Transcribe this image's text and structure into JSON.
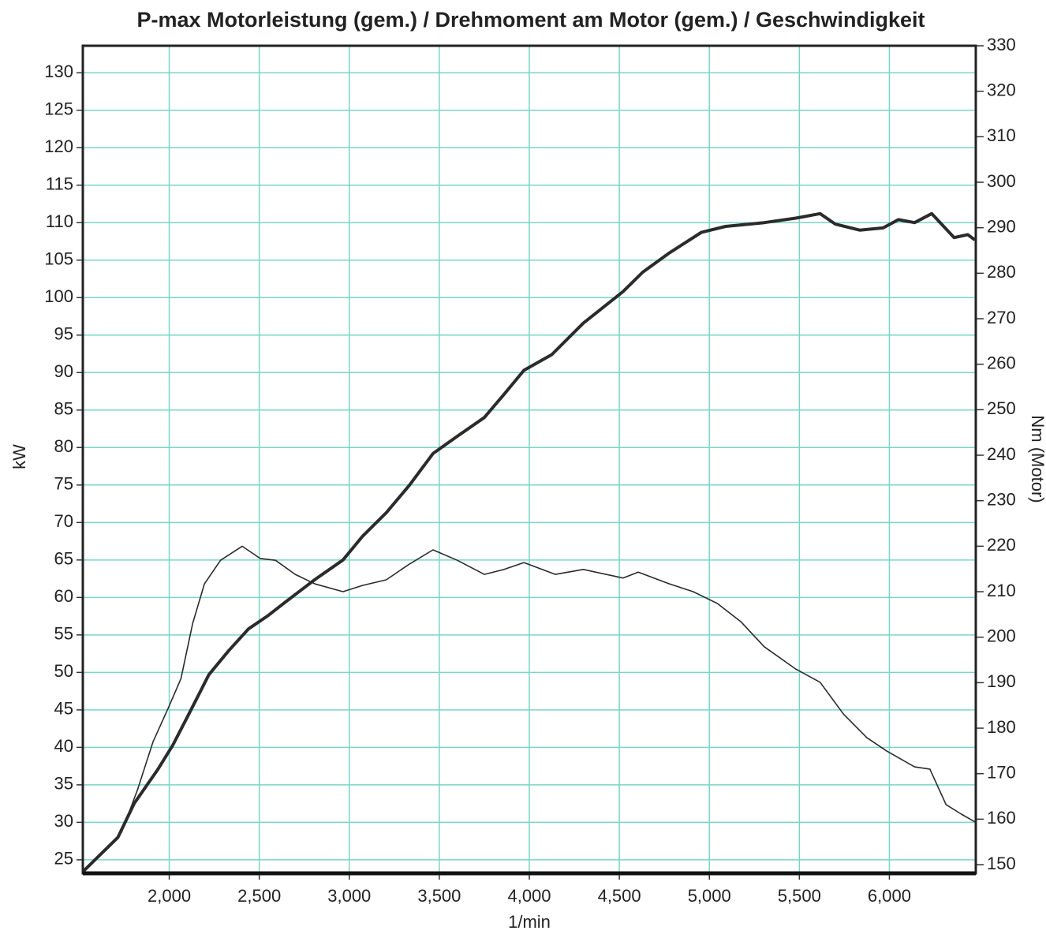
{
  "chart_data": {
    "type": "line",
    "title": "P-max Motorleistung (gem.) / Drehmoment am Motor (gem.) / Geschwindigkeit",
    "xlabel": "1/min",
    "ylabel": "kW",
    "y2label": "Nm (Motor)",
    "xlim": [
      1520,
      6480
    ],
    "ylim": [
      23.2,
      133.6
    ],
    "y2lim": [
      148.1,
      330
    ],
    "xticks": [
      {
        "value": 2000,
        "label": "2,000"
      },
      {
        "value": 2500,
        "label": "2,500"
      },
      {
        "value": 3000,
        "label": "3,000"
      },
      {
        "value": 3500,
        "label": "3,500"
      },
      {
        "value": 4000,
        "label": "4,000"
      },
      {
        "value": 4500,
        "label": "4,500"
      },
      {
        "value": 5000,
        "label": "5,000"
      },
      {
        "value": 5500,
        "label": "5,500"
      },
      {
        "value": 6000,
        "label": "6,000"
      }
    ],
    "yticks": [
      25,
      30,
      35,
      40,
      45,
      50,
      55,
      60,
      65,
      70,
      75,
      80,
      85,
      90,
      95,
      100,
      105,
      110,
      115,
      120,
      125,
      130
    ],
    "y2ticks": [
      150,
      160,
      170,
      180,
      190,
      200,
      210,
      220,
      230,
      240,
      250,
      260,
      270,
      280,
      290,
      300,
      310,
      320,
      330
    ],
    "grid": true,
    "series": [
      {
        "name": "Motorleistung",
        "color": "#2b2b2b",
        "width": 4,
        "x": [
          1520,
          1630,
          1715,
          1805,
          1935,
          2020,
          2110,
          2220,
          2330,
          2440,
          2550,
          2635,
          2810,
          2965,
          3075,
          3205,
          3335,
          3465,
          3600,
          3750,
          3860,
          3970,
          4125,
          4300,
          4520,
          4630,
          4780,
          4955,
          5090,
          5305,
          5480,
          5615,
          5700,
          5835,
          5965,
          6050,
          6140,
          6235,
          6360,
          6435,
          6475
        ],
        "values": [
          23.4,
          26,
          28,
          32.5,
          37,
          40.3,
          44.5,
          49.7,
          52.9,
          55.8,
          57.6,
          59.2,
          62.4,
          65,
          68.2,
          71.3,
          75,
          79.2,
          81.5,
          84,
          87.1,
          90.3,
          92.4,
          96.6,
          100.8,
          103.4,
          106,
          108.7,
          109.5,
          110,
          110.6,
          111.2,
          109.8,
          109,
          109.3,
          110.4,
          110,
          111.2,
          108,
          108.4,
          107.7
        ]
      },
      {
        "name": "Drehmoment",
        "color": "#2b2b2b",
        "width": 1.6,
        "axis": "y2",
        "x": [
          1520,
          1630,
          1735,
          1825,
          1910,
          2000,
          2065,
          2130,
          2195,
          2285,
          2405,
          2505,
          2590,
          2700,
          2810,
          2965,
          3075,
          3205,
          3335,
          3465,
          3600,
          3750,
          3860,
          3970,
          4145,
          4300,
          4520,
          4605,
          4780,
          4910,
          5045,
          5175,
          5305,
          5480,
          5615,
          5745,
          5875,
          5985,
          6140,
          6225,
          6315,
          6400,
          6475
        ],
        "values": [
          148.4,
          152.8,
          157.1,
          166.6,
          177,
          184.9,
          190.9,
          203,
          211.7,
          216.9,
          220,
          217.3,
          216.9,
          213.8,
          211.7,
          210,
          211.4,
          212.6,
          216.1,
          219.2,
          216.9,
          213.8,
          214.9,
          216.4,
          213.8,
          214.9,
          213,
          214.3,
          211.7,
          210,
          207.4,
          203.4,
          197.9,
          193,
          190.1,
          183.1,
          177.9,
          175,
          171.5,
          171,
          163.2,
          161.1,
          159.4
        ]
      }
    ]
  }
}
